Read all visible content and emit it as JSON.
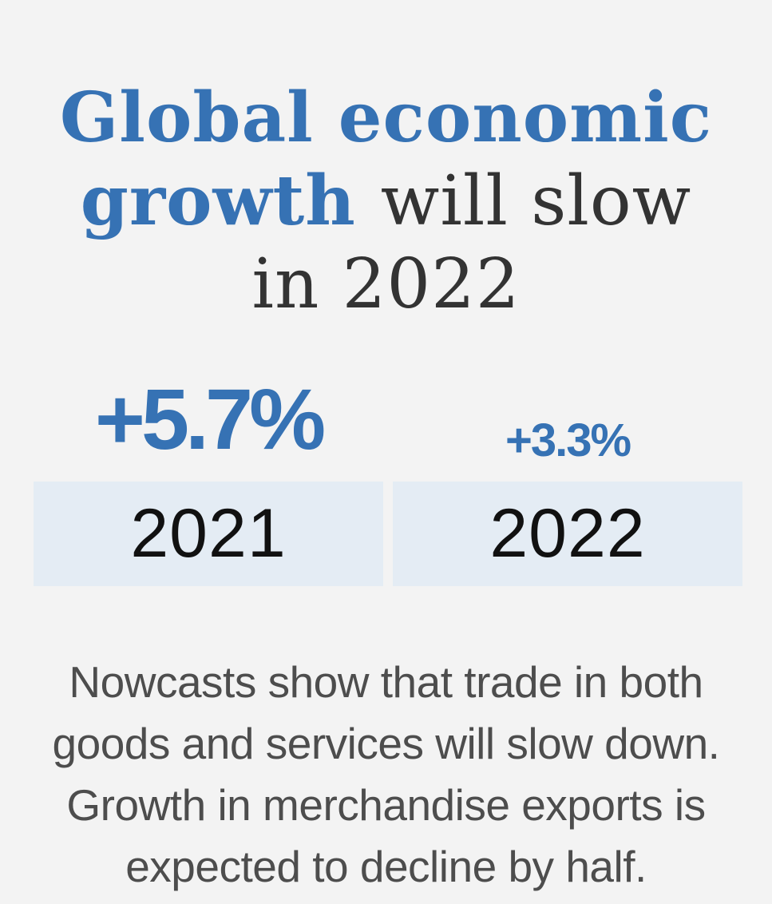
{
  "headline": {
    "highlight": "Global economic growth",
    "rest_line": "will slow",
    "rest_line2": "in 2022"
  },
  "stats": [
    {
      "year": "2021",
      "value": "+5.7%"
    },
    {
      "year": "2022",
      "value": "+3.3%"
    }
  ],
  "body": {
    "line1": "Nowcasts show that trade in both",
    "line2": "goods and services will slow down.",
    "line3": "Growth in merchandise exports is",
    "line4": "expected to decline by half."
  },
  "colors": {
    "accent": "#3672b4",
    "background": "#f3f3f3",
    "year_box": "#e4ecf4",
    "text": "#4d4d4d"
  }
}
